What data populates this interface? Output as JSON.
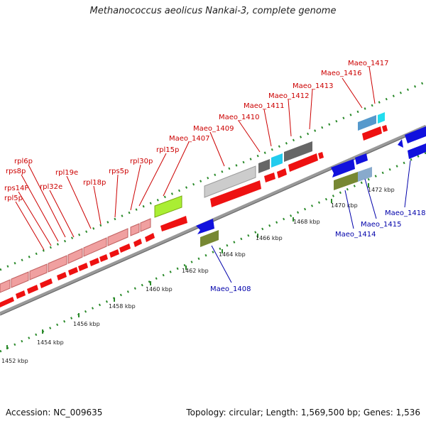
{
  "title": "Methanococcus aeolicus Nankai-3, complete genome",
  "accession": "Accession: NC_009635",
  "topology": "Topology: circular; Length: 1,569,500 bp; Genes: 1,536",
  "colors": {
    "backbone": "#888888",
    "tick": "#2a8a2a",
    "label_red": "#cc0000",
    "label_blue": "#0000aa"
  },
  "ticks": [
    "1452 kbp",
    "1454 kbp",
    "1456 kbp",
    "1458 kbp",
    "1460 kbp",
    "1462 kbp",
    "1464 kbp",
    "1466 kbp",
    "1468 kbp",
    "1470 kbp",
    "1472 kbp"
  ],
  "top_labels": [
    "rpl5p",
    "rps14P",
    "rps8p",
    "rpl6p",
    "rpl32e",
    "rpl19e",
    "rpl18p",
    "rps5p",
    "rpl30p",
    "rpl15p",
    "Maeo_1407",
    "Maeo_1409",
    "Maeo_1410",
    "Maeo_1411",
    "Maeo_1412",
    "Maeo_1413",
    "Maeo_1416",
    "Maeo_1417"
  ],
  "bottom_labels": [
    "Maeo_1408",
    "Maeo_1414",
    "Maeo_1415",
    "Maeo_1418"
  ]
}
